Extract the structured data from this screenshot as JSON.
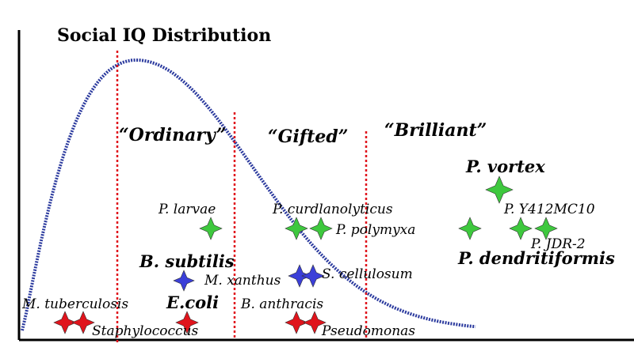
{
  "chart_data": {
    "type": "scatter",
    "title": "Social IQ Distribution",
    "xlabel": "",
    "ylabel": "",
    "categories": [
      "“Ordinary”",
      "“Gifted”",
      "“Brilliant”"
    ],
    "colors": {
      "curve": "#2b3a9e",
      "divider": "#e0141c",
      "axis": "#000000",
      "green": "#3ec83e",
      "blue": "#3b3fd8",
      "red": "#e0141c"
    },
    "series": [
      {
        "name": "P. vortex",
        "color": "green",
        "markers": 1,
        "bold": true
      },
      {
        "name": "P. larvae",
        "color": "green",
        "markers": 1,
        "bold": false
      },
      {
        "name": "P. curdlanolyticus",
        "color": "green",
        "markers": 1,
        "bold": false
      },
      {
        "name": "P. polymyxa",
        "color": "green",
        "markers": 1,
        "bold": false
      },
      {
        "name": "P. Y412MC10",
        "color": "green",
        "markers": 1,
        "bold": false
      },
      {
        "name": "P. JDR-2",
        "color": "green",
        "markers": 1,
        "bold": false
      },
      {
        "name": "P. dendritiformis",
        "color": "green",
        "markers": 1,
        "bold": true
      },
      {
        "name": "B. subtilis",
        "color": "blue",
        "markers": 1,
        "bold": true
      },
      {
        "name": "M. xanthus",
        "color": "blue",
        "markers": 1,
        "bold": false
      },
      {
        "name": "S. cellulosum",
        "color": "blue",
        "markers": 1,
        "bold": false
      },
      {
        "name": "M. tuberculosis",
        "color": "red",
        "markers": 2,
        "bold": false
      },
      {
        "name": "Staphylococcus",
        "color": "red",
        "markers": 1,
        "bold": false
      },
      {
        "name": "E.coli",
        "color": "red",
        "markers": 1,
        "bold": true
      },
      {
        "name": "B. anthracis",
        "color": "red",
        "markers": 1,
        "bold": false
      },
      {
        "name": "Pseudomonas",
        "color": "red",
        "markers": 1,
        "bold": false
      }
    ]
  }
}
